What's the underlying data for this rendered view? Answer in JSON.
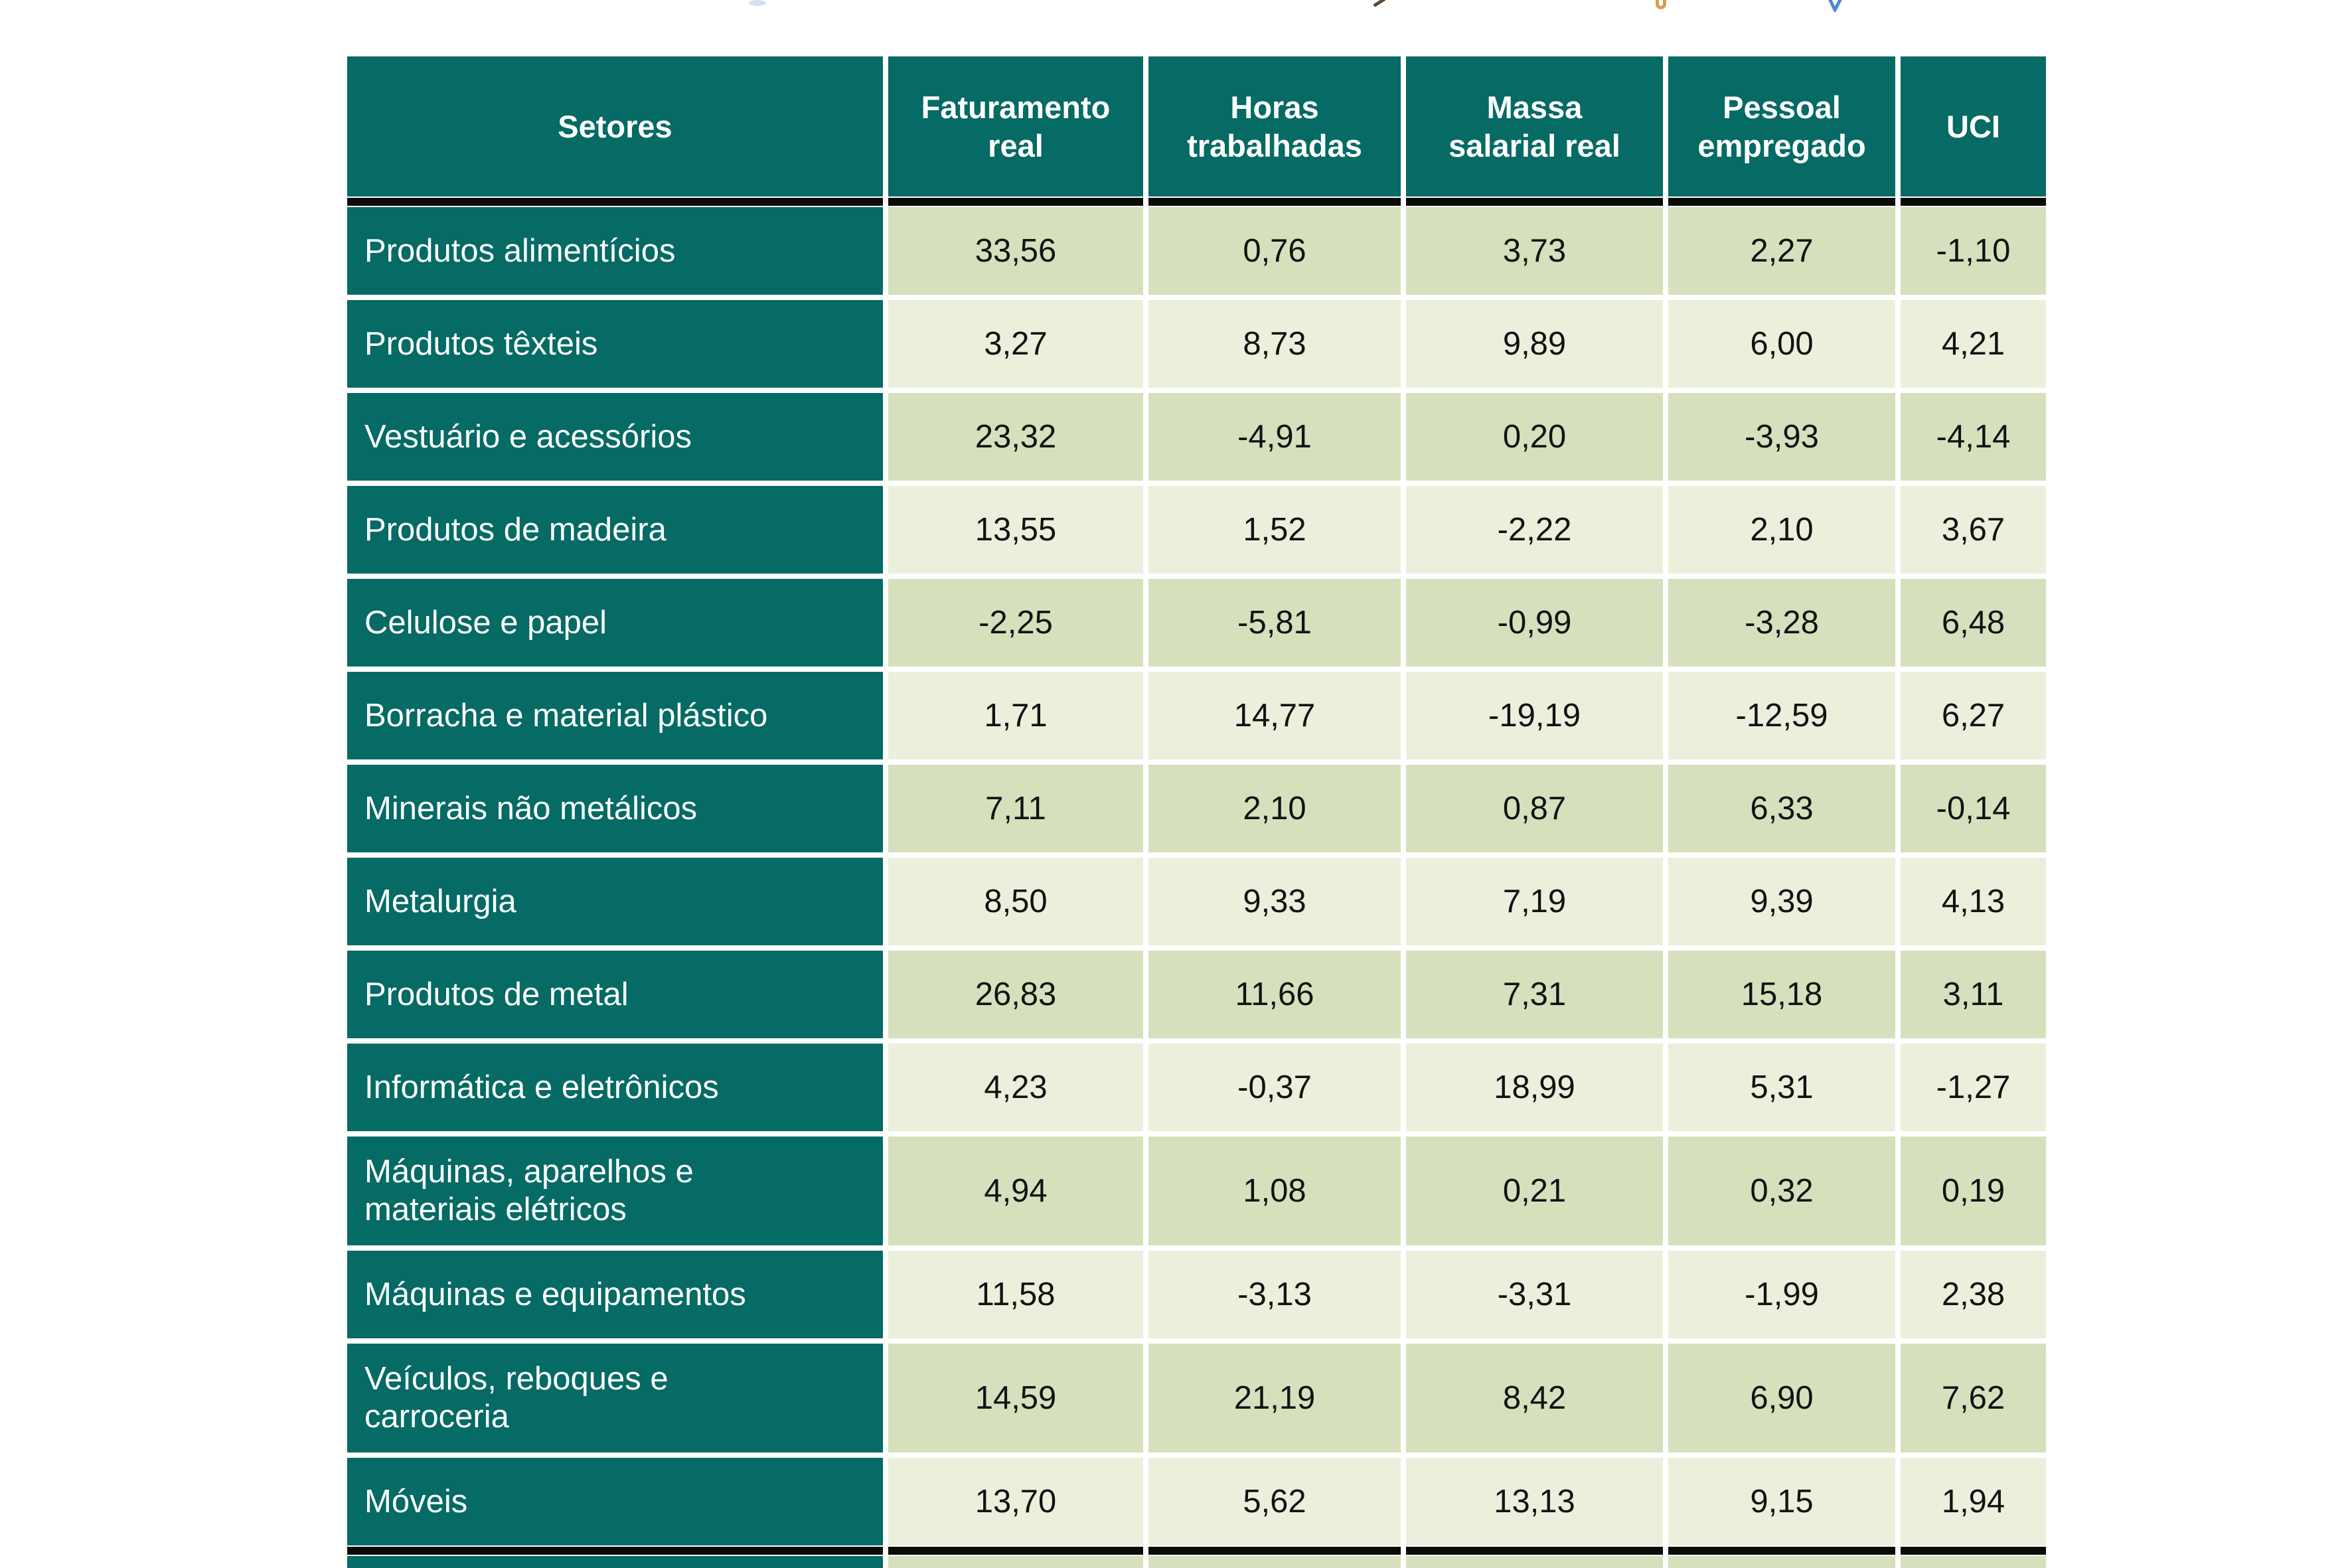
{
  "colors": {
    "teal": "#066a65",
    "row_dark": "#d6e0bd",
    "row_light": "#eaf0dc",
    "rule_black": "#0a0a08",
    "header_text": "#ffffff",
    "value_text": "#121212",
    "page_background": "#ffffff",
    "cropped_title_fragments": [
      "#cfe2f4",
      "#5a4a3a",
      "#dd9a4d",
      "#4b89d0"
    ]
  },
  "table": {
    "sectors_header": "Setores",
    "columns": [
      "Faturamento\nreal",
      "Horas\ntrabalhadas",
      "Massa\nsalarial real",
      "Pessoal\nempregado",
      "UCI"
    ],
    "rows": [
      {
        "setor": "Produtos alimentícios",
        "values": [
          "33,56",
          "0,76",
          "3,73",
          "2,27",
          "-1,10"
        ]
      },
      {
        "setor": "Produtos têxteis",
        "values": [
          "3,27",
          "8,73",
          "9,89",
          "6,00",
          "4,21"
        ]
      },
      {
        "setor": "Vestuário e acessórios",
        "values": [
          "23,32",
          "-4,91",
          "0,20",
          "-3,93",
          "-4,14"
        ]
      },
      {
        "setor": "Produtos de madeira",
        "values": [
          "13,55",
          "1,52",
          "-2,22",
          "2,10",
          "3,67"
        ]
      },
      {
        "setor": "Celulose e papel",
        "values": [
          "-2,25",
          "-5,81",
          "-0,99",
          "-3,28",
          "6,48"
        ]
      },
      {
        "setor": "Borracha e material plástico",
        "values": [
          "1,71",
          "14,77",
          "-19,19",
          "-12,59",
          "6,27"
        ]
      },
      {
        "setor": "Minerais não metálicos",
        "values": [
          "7,11",
          "2,10",
          "0,87",
          "6,33",
          "-0,14"
        ]
      },
      {
        "setor": "Metalurgia",
        "values": [
          "8,50",
          "9,33",
          "7,19",
          "9,39",
          "4,13"
        ]
      },
      {
        "setor": "Produtos de metal",
        "values": [
          "26,83",
          "11,66",
          "7,31",
          "15,18",
          "3,11"
        ]
      },
      {
        "setor": "Informática e eletrônicos",
        "values": [
          "4,23",
          "-0,37",
          "18,99",
          "5,31",
          "-1,27"
        ]
      },
      {
        "setor": "Máquinas, aparelhos e\nmateriais elétricos",
        "values": [
          "4,94",
          "1,08",
          "0,21",
          "0,32",
          "0,19"
        ]
      },
      {
        "setor": "Máquinas e equipamentos",
        "values": [
          "11,58",
          "-3,13",
          "-3,31",
          "-1,99",
          "2,38"
        ]
      },
      {
        "setor": "Veículos, reboques e\ncarroceria",
        "values": [
          "14,59",
          "21,19",
          "8,42",
          "6,90",
          "7,62"
        ]
      },
      {
        "setor": "Móveis",
        "values": [
          "13,70",
          "5,62",
          "13,13",
          "9,15",
          "1,94"
        ]
      }
    ],
    "truncated_bottom_row": {
      "setor": "",
      "values": [
        "",
        "",
        "",
        "",
        ""
      ]
    }
  },
  "chart_data": {
    "type": "table",
    "title": "",
    "columns": [
      "Setores",
      "Faturamento real",
      "Horas trabalhadas",
      "Massa salarial real",
      "Pessoal empregado",
      "UCI"
    ],
    "categories": [
      "Produtos alimentícios",
      "Produtos têxteis",
      "Vestuário e acessórios",
      "Produtos de madeira",
      "Celulose e papel",
      "Borracha e material plástico",
      "Minerais não metálicos",
      "Metalurgia",
      "Produtos de metal",
      "Informática e eletrônicos",
      "Máquinas, aparelhos e materiais elétricos",
      "Máquinas e equipamentos",
      "Veículos, reboques e carroceria",
      "Móveis"
    ],
    "series": [
      {
        "name": "Faturamento real",
        "values": [
          33.56,
          3.27,
          23.32,
          13.55,
          -2.25,
          1.71,
          7.11,
          8.5,
          26.83,
          4.23,
          4.94,
          11.58,
          14.59,
          13.7
        ]
      },
      {
        "name": "Horas trabalhadas",
        "values": [
          0.76,
          8.73,
          -4.91,
          1.52,
          -5.81,
          14.77,
          2.1,
          9.33,
          11.66,
          -0.37,
          1.08,
          -3.13,
          21.19,
          5.62
        ]
      },
      {
        "name": "Massa salarial real",
        "values": [
          3.73,
          9.89,
          0.2,
          -2.22,
          -0.99,
          -19.19,
          0.87,
          7.19,
          7.31,
          18.99,
          0.21,
          -3.31,
          8.42,
          13.13
        ]
      },
      {
        "name": "Pessoal empregado",
        "values": [
          2.27,
          6.0,
          -3.93,
          2.1,
          -3.28,
          -12.59,
          6.33,
          9.39,
          15.18,
          5.31,
          0.32,
          -1.99,
          6.9,
          9.15
        ]
      },
      {
        "name": "UCI",
        "values": [
          -1.1,
          4.21,
          -4.14,
          3.67,
          6.48,
          6.27,
          -0.14,
          4.13,
          3.11,
          -1.27,
          0.19,
          2.38,
          7.62,
          1.94
        ]
      }
    ],
    "number_format": "decimal comma, 2 places",
    "notes": "table cropped at top (title fragments) and bottom (one extra row partially visible below thick black rule)"
  }
}
